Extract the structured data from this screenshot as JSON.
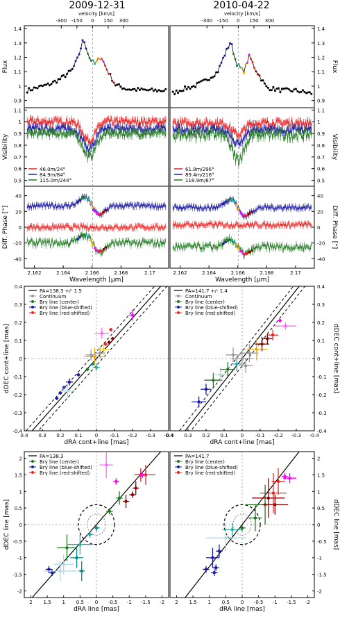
{
  "titles": [
    "2009-12-31",
    "2010-04-22"
  ],
  "colors": {
    "red": "#ee2222",
    "blue": "#1a1aa0",
    "green": "#1f7a1f",
    "black": "#000000",
    "gray": "#999999"
  },
  "chart_data": [
    {
      "type": "line",
      "panel": "spectra",
      "top_axis_label": "velocity [km/s]",
      "top_ticks": [
        "-300",
        "-150",
        "0",
        "150",
        "300"
      ],
      "ylabel": "Flux",
      "ylim": [
        0.85,
        1.42
      ],
      "yticks": [
        "0.9",
        "1",
        "1.1",
        "1.2",
        "1.3",
        "1.4"
      ],
      "series": [
        {
          "epoch": "2009-12-31",
          "points": [
            [
              2.1615,
              0.97
            ],
            [
              2.1622,
              0.99
            ],
            [
              2.163,
              1.01
            ],
            [
              2.1638,
              1.05
            ],
            [
              2.1646,
              1.11
            ],
            [
              2.165,
              1.19
            ],
            [
              2.1654,
              1.33
            ],
            [
              2.1658,
              1.2
            ],
            [
              2.1662,
              1.15
            ],
            [
              2.1666,
              1.21
            ],
            [
              2.167,
              1.12
            ],
            [
              2.1676,
              1.01
            ],
            [
              2.1684,
              0.98
            ],
            [
              2.17,
              0.97
            ],
            [
              2.171,
              0.97
            ]
          ]
        },
        {
          "epoch": "2010-04-22",
          "points": [
            [
              2.1615,
              0.95
            ],
            [
              2.1622,
              0.98
            ],
            [
              2.163,
              1.0
            ],
            [
              2.1638,
              1.04
            ],
            [
              2.1646,
              1.1
            ],
            [
              2.1651,
              1.22
            ],
            [
              2.1655,
              1.31
            ],
            [
              2.1659,
              1.16
            ],
            [
              2.1664,
              1.1
            ],
            [
              2.1668,
              1.21
            ],
            [
              2.1672,
              1.12
            ],
            [
              2.168,
              0.99
            ],
            [
              2.169,
              0.97
            ],
            [
              2.17,
              0.97
            ],
            [
              2.171,
              0.95
            ]
          ]
        }
      ]
    },
    {
      "type": "line",
      "panel": "visibility",
      "ylabel": "Visibility",
      "ylim": [
        0.45,
        1.12
      ],
      "yticks": [
        "0.5",
        "0.6",
        "0.7",
        "0.8",
        "0.9",
        "1",
        "1.1"
      ],
      "legends": [
        [
          {
            "label": "46.0m/24°",
            "color": "#ee2222"
          },
          {
            "label": "84.9m/84°",
            "color": "#1a1aa0"
          },
          {
            "label": "115.0m/244°",
            "color": "#1f7a1f"
          }
        ],
        [
          {
            "label": "61.8m/296°",
            "color": "#ee2222"
          },
          {
            "label": "89.4m/216°",
            "color": "#1a1aa0"
          },
          {
            "label": "118.9m/67°",
            "color": "#1f7a1f"
          }
        ]
      ],
      "series": [
        {
          "epoch": "2009-12-31",
          "name": "46.0m/24°",
          "baseline": 1.0,
          "dip": 0.16,
          "dip_center": 2.1658,
          "dip_width": 0.0006
        },
        {
          "epoch": "2009-12-31",
          "name": "84.9m/84°",
          "baseline": 0.94,
          "dip": 0.17,
          "dip_center": 2.1658,
          "dip_width": 0.0006
        },
        {
          "epoch": "2009-12-31",
          "name": "115.0m/244°",
          "baseline": 0.9,
          "dip": 0.2,
          "dip_center": 2.1658,
          "dip_width": 0.0006
        },
        {
          "epoch": "2010-04-22",
          "name": "61.8m/296°",
          "baseline": 0.99,
          "dip": 0.1,
          "dip_center": 2.166,
          "dip_width": 0.0006
        },
        {
          "epoch": "2010-04-22",
          "name": "89.4m/216°",
          "baseline": 0.93,
          "dip": 0.11,
          "dip_center": 2.166,
          "dip_width": 0.0006
        },
        {
          "epoch": "2010-04-22",
          "name": "118.9m/67°",
          "baseline": 0.89,
          "dip": 0.21,
          "dip_center": 2.166,
          "dip_width": 0.0006
        }
      ]
    },
    {
      "type": "line",
      "panel": "differential-phase",
      "ylabel": "Diff. Phase [°]",
      "xlabel": "Wavelength [µm]",
      "xlim": [
        2.1613,
        2.1713
      ],
      "xticks": [
        "2.162",
        "2.164",
        "2.166",
        "2.168",
        "2.17"
      ],
      "ylim": [
        -52,
        52
      ],
      "yticks": [
        "-40",
        "-20",
        "0",
        "20",
        "40"
      ],
      "series": [
        {
          "epoch": "2009-12-31",
          "name": "46.0m/24°",
          "offset": 0,
          "signal": 0
        },
        {
          "epoch": "2009-12-31",
          "name": "84.9m/84°",
          "offset": 27,
          "signal": 12
        },
        {
          "epoch": "2009-12-31",
          "name": "115.0m/244°",
          "offset": -20,
          "signal": 12
        },
        {
          "epoch": "2010-04-22",
          "name": "61.8m/296°",
          "offset": 3,
          "signal": 0
        },
        {
          "epoch": "2010-04-22",
          "name": "89.4m/216°",
          "offset": 25,
          "signal": 12
        },
        {
          "epoch": "2010-04-22",
          "name": "118.9m/67°",
          "offset": -25,
          "signal": 10
        }
      ]
    },
    {
      "type": "scatter",
      "panel": "photocenter-cont+line",
      "xlabel": "dRA cont+line [mas]",
      "ylabel": "dDEC cont+line [mas]",
      "xlim": [
        0.4,
        -0.4
      ],
      "ylim": [
        -0.4,
        0.4
      ],
      "ticks": [
        "0.4",
        "0.3",
        "0.2",
        "0.1",
        "0",
        "-0.1",
        "-0.2",
        "-0.3",
        "-0.4"
      ],
      "legends": [
        [
          {
            "label": "PA=138.3 +/- 1.5",
            "color": "#000000"
          },
          {
            "label": "Continuum",
            "color": "#999999"
          },
          {
            "label": "Brγ line (center)",
            "color": "#1f7a1f"
          },
          {
            "label": "Brγ line (blue-shifted)",
            "color": "#1a1aa0"
          },
          {
            "label": "Brγ line (red-shifted)",
            "color": "#ee2222"
          }
        ],
        [
          {
            "label": "PA=141.7 +/- 1.4",
            "color": "#000000"
          },
          {
            "label": "Continuum",
            "color": "#999999"
          },
          {
            "label": "Brγ line (center)",
            "color": "#1f7a1f"
          },
          {
            "label": "Brγ line (blue-shifted)",
            "color": "#1a1aa0"
          },
          {
            "label": "Brγ line (red-shifted)",
            "color": "#ee2222"
          }
        ]
      ],
      "pa_deg": [
        138.3,
        141.7
      ],
      "points": [
        [
          [
            0.22,
            -0.22,
            "#1a1aa0",
            0.01,
            0.01
          ],
          [
            0.2,
            -0.19,
            "#1a1aa0",
            0.01,
            0.01
          ],
          [
            0.18,
            -0.16,
            "#3a3ae0",
            0.01,
            0.01
          ],
          [
            0.15,
            -0.13,
            "#1a1aa0",
            0.02,
            0.02
          ],
          [
            0.16,
            -0.18,
            "#add8e6",
            0.04,
            0.04
          ],
          [
            0.1,
            -0.09,
            "#1a1aa0",
            0.01,
            0.01
          ],
          [
            0.05,
            -0.06,
            "#1f7a1f",
            0.01,
            0.01
          ],
          [
            0.02,
            -0.03,
            "#008b8b",
            0.01,
            0.01
          ],
          [
            0.0,
            -0.05,
            "#20b2aa",
            0.02,
            0.02
          ],
          [
            0.01,
            0.01,
            "#ffa500",
            0.06,
            0.05
          ],
          [
            0.03,
            0.02,
            "#999999",
            0.03,
            0.03
          ],
          [
            -0.02,
            0.03,
            "#999999",
            0.03,
            0.03
          ],
          [
            -0.04,
            0.05,
            "#ffd700",
            0.03,
            0.03
          ],
          [
            -0.05,
            0.08,
            "#ee2222",
            0.01,
            0.01
          ],
          [
            -0.07,
            0.09,
            "#8b0000",
            0.01,
            0.01
          ],
          [
            -0.09,
            0.11,
            "#8b0000",
            0.01,
            0.01
          ],
          [
            -0.03,
            0.14,
            "#ff66ff",
            0.04,
            0.03
          ],
          [
            -0.2,
            0.24,
            "#ff00ff",
            0.02,
            0.03
          ],
          [
            -0.08,
            0.16,
            "#ee2222",
            0.01,
            0.01
          ]
        ],
        [
          [
            0.24,
            -0.24,
            "#1a1aa0",
            0.04,
            0.03
          ],
          [
            0.2,
            -0.17,
            "#1a1aa0",
            0.03,
            0.03
          ],
          [
            0.16,
            -0.12,
            "#1f7a1f",
            0.05,
            0.04
          ],
          [
            0.12,
            -0.09,
            "#add8e6",
            0.04,
            0.04
          ],
          [
            0.08,
            -0.06,
            "#1f7a1f",
            0.04,
            0.04
          ],
          [
            0.03,
            -0.03,
            "#20b2aa",
            0.03,
            0.04
          ],
          [
            0.0,
            0.0,
            "#999999",
            0.06,
            0.05
          ],
          [
            -0.04,
            0.03,
            "#999999",
            0.05,
            0.05
          ],
          [
            -0.08,
            0.05,
            "#ffa500",
            0.06,
            0.06
          ],
          [
            -0.11,
            0.08,
            "#8b0000",
            0.04,
            0.04
          ],
          [
            -0.14,
            0.11,
            "#8b0000",
            0.03,
            0.03
          ],
          [
            -0.17,
            0.13,
            "#ee2222",
            0.03,
            0.03
          ],
          [
            -0.21,
            0.21,
            "#ff00ff",
            0.01,
            0.01
          ],
          [
            -0.24,
            0.18,
            "#ff66ff",
            0.06,
            0.02
          ],
          [
            0.05,
            0.02,
            "#999999",
            0.04,
            0.04
          ],
          [
            -0.02,
            -0.04,
            "#999999",
            0.04,
            0.04
          ]
        ]
      ]
    },
    {
      "type": "scatter",
      "panel": "photocenter-line",
      "xlabel": "dRA line [mas]",
      "ylabel": "dDEC line [mas]",
      "xlim": [
        2.2,
        -2.2
      ],
      "ylim": [
        -2.2,
        2.2
      ],
      "ticks": [
        "2",
        "1.5",
        "1",
        "0.5",
        "0",
        "-0.5",
        "-1",
        "-1.5",
        "-2"
      ],
      "legends": [
        [
          {
            "label": "PA=138.3",
            "color": "#000000"
          },
          {
            "label": "Brγ line (center)",
            "color": "#1f7a1f"
          },
          {
            "label": "Brγ line (blue-shifted)",
            "color": "#1a1aa0"
          },
          {
            "label": "Brγ line (red-shifted)",
            "color": "#ee2222"
          }
        ],
        [
          {
            "label": "PA=141.7",
            "color": "#000000"
          },
          {
            "label": "Brγ line (center)",
            "color": "#1f7a1f"
          },
          {
            "label": "Brγ line (blue-shifted)",
            "color": "#1a1aa0"
          },
          {
            "label": "Brγ line (red-shifted)",
            "color": "#ee2222"
          }
        ]
      ],
      "pa_deg": [
        138.3,
        141.7
      ],
      "points": [
        [
          [
            1.45,
            -1.35,
            "#1a1aa0",
            0.1,
            0.1
          ],
          [
            1.35,
            -1.45,
            "#1a1aa0",
            0.1,
            0.1
          ],
          [
            1.1,
            -1.4,
            "#add8e6",
            0.5,
            0.3
          ],
          [
            1.0,
            -1.2,
            "#add8e6",
            0.3,
            0.3
          ],
          [
            0.9,
            -0.7,
            "#1f7a1f",
            0.3,
            0.4
          ],
          [
            0.6,
            -1.0,
            "#008b8b",
            0.2,
            0.3
          ],
          [
            0.5,
            -0.6,
            "#20b2aa",
            0.4,
            0.3
          ],
          [
            0.45,
            -1.4,
            "#008b8b",
            0.1,
            0.3
          ],
          [
            0.2,
            -0.3,
            "#20b2aa",
            0.1,
            0.1
          ],
          [
            0.0,
            -0.1,
            "#008b8b",
            0.1,
            0.1
          ],
          [
            -0.4,
            0.4,
            "#1f7a1f",
            0.1,
            0.1
          ],
          [
            -0.7,
            0.8,
            "#1f7a1f",
            0.1,
            0.2
          ],
          [
            -0.9,
            0.7,
            "#8b0000",
            0.1,
            0.2
          ],
          [
            -1.1,
            0.9,
            "#8b0000",
            0.1,
            0.1
          ],
          [
            -1.2,
            1.1,
            "#8b0000",
            0.1,
            0.2
          ],
          [
            -1.35,
            1.5,
            "#ee2222",
            0.2,
            0.2
          ],
          [
            -1.5,
            1.5,
            "#ee2222",
            0.3,
            0.3
          ],
          [
            -0.3,
            1.8,
            "#ff66ff",
            0.2,
            0.4
          ],
          [
            -0.6,
            1.3,
            "#ff00ff",
            0.1,
            0.1
          ],
          [
            -1.4,
            1.5,
            "#ff00ff",
            0.1,
            0.1
          ]
        ],
        [
          [
            1.1,
            -1.35,
            "#1a1aa0",
            0.1,
            0.1
          ],
          [
            0.85,
            -1.45,
            "#1a1aa0",
            0.1,
            0.1
          ],
          [
            0.8,
            -1.3,
            "#1a1aa0",
            0.1,
            0.1
          ],
          [
            0.9,
            -1.0,
            "#1a1aa0",
            0.2,
            0.3
          ],
          [
            0.7,
            -0.8,
            "#1a1aa0",
            0.1,
            0.2
          ],
          [
            0.5,
            -0.4,
            "#add8e6",
            0.6,
            0.4
          ],
          [
            0.3,
            -0.15,
            "#20b2aa",
            0.3,
            0.2
          ],
          [
            0.0,
            -0.1,
            "#1f7a1f",
            0.1,
            0.1
          ],
          [
            -0.4,
            0.2,
            "#1f7a1f",
            0.2,
            0.4
          ],
          [
            -0.7,
            0.6,
            "#1f7a1f",
            0.6,
            0.6
          ],
          [
            -0.8,
            0.8,
            "#8b0000",
            0.5,
            0.6
          ],
          [
            -1.0,
            0.6,
            "#8b0000",
            0.4,
            0.3
          ],
          [
            -0.95,
            0.95,
            "#ee2222",
            0.4,
            0.6
          ],
          [
            -1.1,
            1.3,
            "#ee2222",
            0.2,
            0.4
          ],
          [
            -1.3,
            1.45,
            "#ff00ff",
            0.1,
            0.1
          ],
          [
            -1.45,
            1.4,
            "#ff00ff",
            0.2,
            0.15
          ]
        ]
      ]
    }
  ]
}
